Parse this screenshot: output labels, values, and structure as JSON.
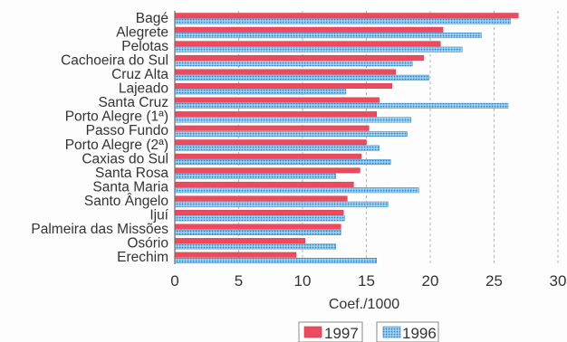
{
  "chart_data": {
    "type": "bar",
    "orientation": "horizontal",
    "categories": [
      "Bagé",
      "Alegrete",
      "Pelotas",
      "Cachoeira do Sul",
      "Cruz Alta",
      "Lajeado",
      "Santa Cruz",
      "Porto Alegre (1ª)",
      "Passo Fundo",
      "Porto Alegre (2ª)",
      "Caxias do Sul",
      "Santa Rosa",
      "Santa Maria",
      "Santo Ângelo",
      "Ijuí",
      "Palmeira das Missões",
      "Osório",
      "Erechim"
    ],
    "series": [
      {
        "name": "1997",
        "color": "#ee4a5e",
        "values": [
          26.9,
          21.0,
          20.8,
          19.5,
          17.3,
          17.0,
          16.0,
          15.8,
          15.2,
          15.0,
          14.6,
          14.5,
          14.0,
          13.5,
          13.2,
          13.0,
          10.2,
          9.5
        ]
      },
      {
        "name": "1996",
        "color": "#5ba8df",
        "values": [
          26.3,
          24.0,
          22.5,
          18.6,
          19.9,
          13.4,
          26.1,
          18.5,
          18.2,
          16.0,
          16.9,
          12.6,
          19.1,
          16.7,
          13.3,
          13.0,
          12.6,
          15.8
        ]
      }
    ],
    "xlabel": "Coef./1000",
    "ylabel": "",
    "xlim": [
      0,
      30
    ],
    "xticks": [
      "0",
      "5",
      "10",
      "15",
      "20",
      "25",
      "30"
    ],
    "grid": "vertical-dashed",
    "legend": "bottom-right"
  }
}
